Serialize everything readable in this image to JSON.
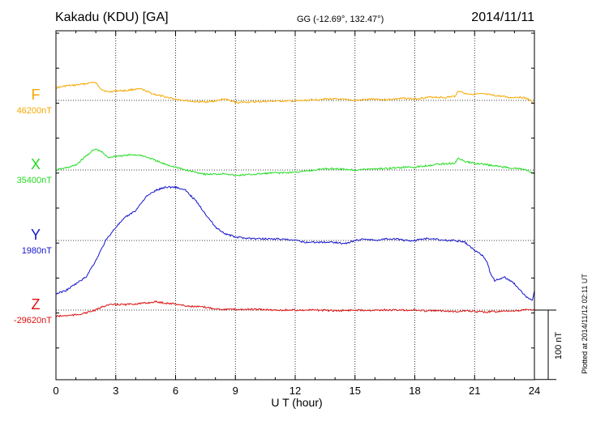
{
  "header": {
    "station": "Kakadu (KDU)  [GA]",
    "coords": "GG (-12.69°, 132.47°)",
    "date": "2014/11/11"
  },
  "side_note": "Plotted at 2014/11/12 02:11  UT",
  "scale_bar_label": "100 nT",
  "chart_data": {
    "type": "line",
    "title": "Kakadu (KDU)  [GA]",
    "xlabel": "U T (hour)",
    "xlim": [
      0,
      24
    ],
    "x_ticks": [
      0,
      3,
      6,
      9,
      12,
      15,
      18,
      21,
      24
    ],
    "x_tick_labels": [
      "0",
      "3",
      "6",
      "9",
      "12",
      "15",
      "18",
      "21",
      "24"
    ],
    "grid": true,
    "scale_bar_nT": 100,
    "series": [
      {
        "name": "F",
        "baseline_label": "46200nT",
        "color": "#f5a800",
        "x": [
          0,
          0.5,
          1,
          1.5,
          1.8,
          2,
          2.3,
          2.6,
          3,
          3.5,
          3.9,
          4.3,
          4.8,
          5.3,
          6,
          6.5,
          7,
          7.5,
          8,
          8.5,
          9,
          10,
          11,
          11.5,
          12,
          12.5,
          13,
          13.5,
          14,
          14.5,
          15,
          15.5,
          16,
          16.5,
          17,
          17.5,
          18,
          18.5,
          19,
          19.5,
          20,
          20.2,
          20.5,
          21,
          21.5,
          22,
          22.3,
          22.8,
          23.2,
          23.6,
          24
        ],
        "values": [
          18,
          21,
          22,
          24,
          26,
          25,
          16,
          12,
          14,
          14,
          16,
          16,
          10,
          6,
          2,
          0,
          -2,
          -2,
          -1,
          2,
          -3,
          -2,
          -1,
          -1,
          -1,
          0,
          1,
          2,
          2,
          1,
          0,
          1,
          2,
          1,
          2,
          3,
          2,
          4,
          5,
          4,
          6,
          14,
          10,
          9,
          9,
          7,
          6,
          4,
          5,
          3,
          -4
        ]
      },
      {
        "name": "X",
        "baseline_label": "35400nT",
        "color": "#22dd22",
        "x": [
          0,
          0.5,
          1,
          1.5,
          1.8,
          2,
          2.3,
          2.6,
          3,
          3.5,
          3.9,
          4.3,
          4.8,
          5.3,
          6,
          6.5,
          7,
          7.5,
          8,
          8.5,
          9,
          10,
          11,
          11.5,
          12,
          12.5,
          13,
          13.5,
          14,
          14.5,
          15,
          15.5,
          16,
          16.5,
          17,
          17.5,
          18,
          18.5,
          19,
          19.5,
          20,
          20.2,
          20.5,
          21,
          21.5,
          22,
          22.3,
          22.8,
          23.2,
          23.6,
          24
        ],
        "values": [
          0,
          3,
          7,
          20,
          27,
          30,
          26,
          18,
          20,
          21,
          22,
          21,
          16,
          10,
          4,
          0,
          -3,
          -6,
          -6,
          -5,
          -8,
          -6,
          -4,
          -4,
          -3,
          -2,
          0,
          2,
          2,
          1,
          0,
          1,
          2,
          2,
          3,
          4,
          4,
          6,
          8,
          9,
          10,
          17,
          12,
          10,
          8,
          6,
          5,
          3,
          2,
          0,
          -6
        ]
      },
      {
        "name": "Y",
        "baseline_label": "1980nT",
        "color": "#1414cc",
        "x": [
          0,
          0.5,
          1,
          1.5,
          2,
          2.5,
          3,
          3.5,
          4,
          4.5,
          5,
          5.5,
          6,
          6.5,
          7,
          7.5,
          8,
          8.5,
          9,
          10,
          11,
          12,
          12.5,
          13,
          13.5,
          14,
          14.5,
          15,
          15.5,
          16,
          16.5,
          17,
          17.5,
          18,
          18.5,
          19,
          19.5,
          20,
          20.5,
          21,
          21.3,
          21.6,
          21.8,
          22,
          22.5,
          23,
          23.3,
          23.6,
          23.9,
          24
        ],
        "values": [
          -32,
          -30,
          -26,
          -22,
          -12,
          0,
          8,
          14,
          18,
          26,
          30,
          32,
          32,
          30,
          24,
          16,
          8,
          4,
          2,
          1,
          1,
          0,
          -1,
          -1,
          -1,
          -1,
          -2,
          0,
          1,
          0,
          1,
          1,
          0,
          0,
          1,
          1,
          0,
          0,
          -1,
          -6,
          -8,
          -12,
          -20,
          -24,
          -22,
          -26,
          -30,
          -34,
          -36,
          -30
        ],
        "dev_scale": 2.4
      },
      {
        "name": "Z",
        "baseline_label": "-29620nT",
        "color": "#dd1111",
        "x": [
          0,
          0.5,
          1,
          1.5,
          2,
          2.5,
          3,
          3.5,
          4,
          4.5,
          5,
          5.5,
          6,
          6.5,
          7,
          7.5,
          8,
          8.5,
          9,
          10,
          11,
          12,
          13,
          14,
          15,
          16,
          17,
          18,
          18.5,
          19,
          19.5,
          20,
          20.5,
          21,
          21.5,
          22,
          22.5,
          23,
          23.5,
          24
        ],
        "values": [
          -9,
          -8,
          -7,
          -4,
          0,
          7,
          8,
          8,
          9,
          10,
          12,
          10,
          9,
          6,
          5,
          4,
          2,
          1,
          1,
          1,
          0,
          0,
          0,
          -1,
          0,
          0,
          0,
          0,
          -1,
          -1,
          -1,
          -2,
          -1,
          -2,
          -3,
          -2,
          -2,
          -1,
          0,
          1
        ]
      }
    ]
  }
}
